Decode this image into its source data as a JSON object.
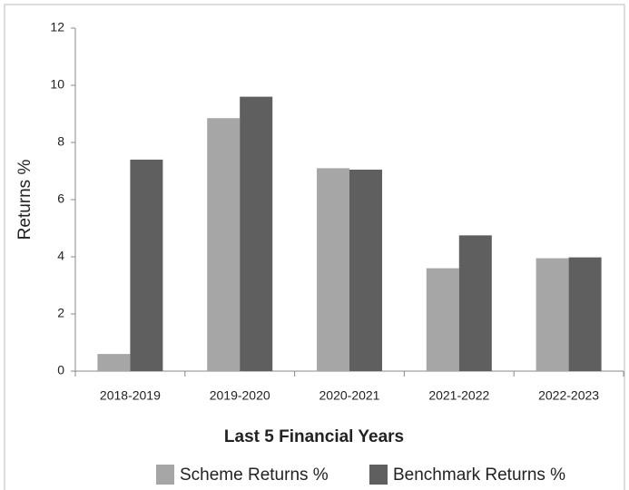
{
  "chart_data": {
    "type": "bar",
    "x_label": "Last 5 Financial Years",
    "y_label": "Returns %",
    "categories": [
      "2018-2019",
      "2019-2020",
      "2020-2021",
      "2021-2022",
      "2022-2023"
    ],
    "series": [
      {
        "name": "Scheme Returns %",
        "color": "#a6a6a6",
        "values": [
          0.6,
          8.85,
          7.1,
          3.6,
          3.95
        ]
      },
      {
        "name": "Benchmark Returns %",
        "color": "#5f5f5f",
        "values": [
          7.4,
          9.6,
          7.05,
          4.75,
          3.98
        ]
      }
    ],
    "ylim": [
      0,
      12
    ],
    "yticks": [
      0,
      2,
      4,
      6,
      8,
      10,
      12
    ],
    "legend": "bottom"
  }
}
